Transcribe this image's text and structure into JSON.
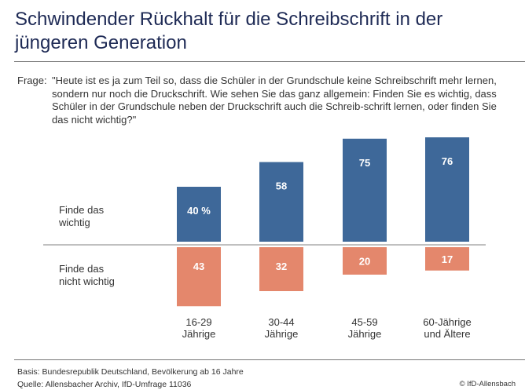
{
  "title": "Schwindender Rückhalt für die Schreibschrift in der jüngeren Generation",
  "question_label": "Frage:",
  "question_text": "\"Heute ist es ja zum Teil so, dass die Schüler in der Grundschule keine Schreibschrift mehr lernen, sondern nur noch die Druckschrift. Wie sehen Sie das ganz allgemein: Finden Sie es wichtig, dass Schüler in der Grundschule neben der Druckschrift auch die Schreib-schrift lernen, oder finden Sie das nicht wichtig?\"",
  "footer": {
    "basis": "Basis: Bundesrepublik Deutschland, Bevölkerung ab 16 Jahre",
    "source": "Quelle: Allensbacher Archiv, IfD-Umfrage 11036",
    "copyright": "© IfD-Allensbach"
  },
  "colors": {
    "wichtig": "#3e6899",
    "nicht_wichtig": "#e4876c",
    "title": "#1e2a55"
  },
  "chart_data": {
    "type": "bar",
    "layout": "diverging",
    "categories": [
      "16-29 Jährige",
      "30-44 Jährige",
      "45-59 Jährige",
      "60-Jährige und Ältere"
    ],
    "category_lines": [
      [
        "16-29",
        "Jährige"
      ],
      [
        "30-44",
        "Jährige"
      ],
      [
        "45-59",
        "Jährige"
      ],
      [
        "60-Jährige",
        "und Ältere"
      ]
    ],
    "unit": "%",
    "series": [
      {
        "name": "Finde das wichtig",
        "name_lines": [
          "Finde das",
          "wichtig"
        ],
        "values": [
          40,
          58,
          75,
          76
        ],
        "labels": [
          "40 %",
          "58",
          "75",
          "76"
        ],
        "direction": "up"
      },
      {
        "name": "Finde das nicht wichtig",
        "name_lines": [
          "Finde das",
          "nicht wichtig"
        ],
        "values": [
          43,
          32,
          20,
          17
        ],
        "labels": [
          "43",
          "32",
          "20",
          "17"
        ],
        "direction": "down"
      }
    ]
  }
}
